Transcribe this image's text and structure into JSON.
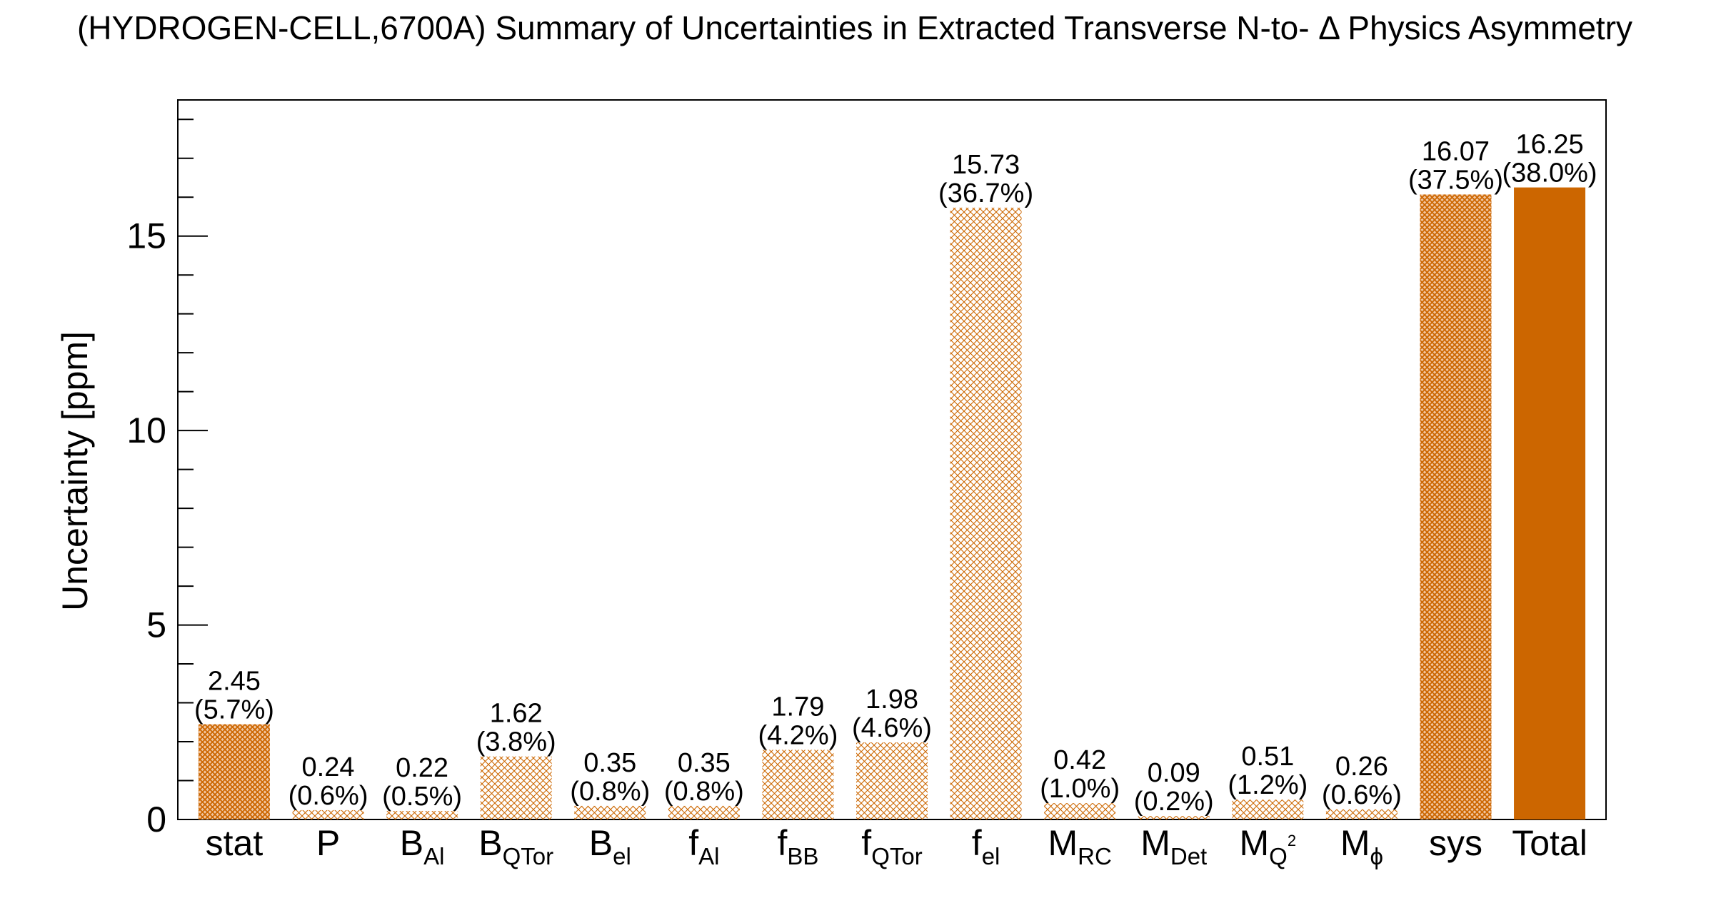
{
  "chart_data": {
    "type": "bar",
    "title": "(HYDROGEN-CELL,6700A) Summary of Uncertainties in Extracted Transverse N-to-   Δ Physics Asymmetry",
    "xlabel": "",
    "ylabel": "Uncertainty [ppm]",
    "ylim": [
      0,
      18.5
    ],
    "yticks": [
      0,
      5,
      10,
      15
    ],
    "grid": false,
    "legend": "none",
    "categories": [
      {
        "base": "stat",
        "sub": "",
        "sup": ""
      },
      {
        "base": "P",
        "sub": "",
        "sup": ""
      },
      {
        "base": "B",
        "sub": "Al",
        "sup": ""
      },
      {
        "base": "B",
        "sub": "QTor",
        "sup": ""
      },
      {
        "base": "B",
        "sub": "el",
        "sup": ""
      },
      {
        "base": "f",
        "sub": "Al",
        "sup": ""
      },
      {
        "base": "f",
        "sub": "BB",
        "sup": ""
      },
      {
        "base": "f",
        "sub": "QTor",
        "sup": ""
      },
      {
        "base": "f",
        "sub": "el",
        "sup": ""
      },
      {
        "base": "M",
        "sub": "RC",
        "sup": ""
      },
      {
        "base": "M",
        "sub": "Det",
        "sup": ""
      },
      {
        "base": "M",
        "sub": "Q",
        "sup": "2"
      },
      {
        "base": "M",
        "sub": "ϕ",
        "sup": ""
      },
      {
        "base": "sys",
        "sub": "",
        "sup": ""
      },
      {
        "base": "Total",
        "sub": "",
        "sup": ""
      }
    ],
    "values": [
      2.45,
      0.24,
      0.22,
      1.62,
      0.35,
      0.35,
      1.79,
      1.98,
      15.73,
      0.42,
      0.09,
      0.51,
      0.26,
      16.07,
      16.25
    ],
    "value_labels": [
      "2.45",
      "0.24",
      "0.22",
      "1.62",
      "0.35",
      "0.35",
      "1.79",
      "1.98",
      "15.73",
      "0.42",
      "0.09",
      "0.51",
      "0.26",
      "16.07",
      "16.25"
    ],
    "percent_labels": [
      "(5.7%)",
      "(0.6%)",
      "(0.5%)",
      "(3.8%)",
      "(0.8%)",
      "(0.8%)",
      "(4.2%)",
      "(4.6%)",
      "(36.7%)",
      "(1.0%)",
      "(0.2%)",
      "(1.2%)",
      "(0.6%)",
      "(37.5%)",
      "(38.0%)"
    ],
    "fill_styles": [
      "dense",
      "light",
      "light",
      "light",
      "light",
      "light",
      "light",
      "light",
      "light",
      "light",
      "light",
      "light",
      "light",
      "dense",
      "solid"
    ],
    "colors": {
      "bar": "#cc6600",
      "axis": "#000000",
      "background": "#ffffff"
    }
  }
}
